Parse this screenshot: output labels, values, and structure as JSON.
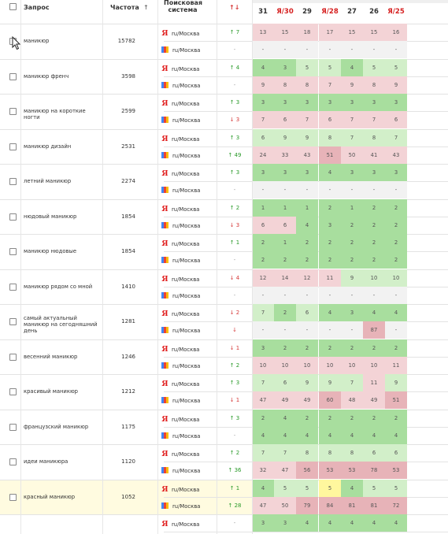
{
  "header": {
    "select_all": "",
    "query": "Запрос",
    "frequency": "Частота",
    "frequency_sort": "↑",
    "engine": "Поисковая система",
    "change": "↑↓"
  },
  "date_columns": [
    {
      "label": "31",
      "yandex": false
    },
    {
      "label": "Я/30",
      "yandex": true
    },
    {
      "label": "29",
      "yandex": false
    },
    {
      "label": "Я/28",
      "yandex": true
    },
    {
      "label": "27",
      "yandex": false
    },
    {
      "label": "26",
      "yandex": false
    },
    {
      "label": "Я/25",
      "yandex": true
    }
  ],
  "engines": {
    "yandex_icon": "yandex-logo-icon",
    "google_icon": "google-logo-icon",
    "region": "ru/Москва",
    "yandex_letter": "Я"
  },
  "colors": {
    "green_strong": "#a8de9e",
    "green_light": "#d2efc9",
    "red_light": "#f3d3d6",
    "red_mid": "#e7b3b8",
    "grey": "#f2f2f2",
    "highlight_row": "#fffbe0",
    "yellow_cell": "#fff79e"
  },
  "rows": [
    {
      "query": "маникюр",
      "freq": "15782",
      "y": {
        "d": "↑ 7",
        "t": "up",
        "v": [
          "13",
          "15",
          "18",
          "17",
          "15",
          "15",
          "16"
        ]
      },
      "g": {
        "d": "-",
        "t": "eq",
        "v": [
          "-",
          "-",
          "-",
          "-",
          "-",
          "-",
          "-"
        ]
      }
    },
    {
      "query": "маникюр френч",
      "freq": "3598",
      "y": {
        "d": "↑ 4",
        "t": "up",
        "v": [
          "4",
          "3",
          "5",
          "5",
          "4",
          "5",
          "5"
        ]
      },
      "g": {
        "d": "-",
        "t": "eq",
        "v": [
          "9",
          "8",
          "8",
          "7",
          "9",
          "8",
          "9"
        ]
      }
    },
    {
      "query": "маникюр на короткие ногти",
      "freq": "2599",
      "y": {
        "d": "↑ 3",
        "t": "up",
        "v": [
          "3",
          "3",
          "3",
          "3",
          "3",
          "3",
          "3"
        ]
      },
      "g": {
        "d": "↓ 3",
        "t": "down",
        "v": [
          "7",
          "6",
          "7",
          "6",
          "7",
          "7",
          "6"
        ]
      }
    },
    {
      "query": "маникюр дизайн",
      "freq": "2531",
      "y": {
        "d": "↑ 3",
        "t": "up",
        "v": [
          "6",
          "9",
          "9",
          "8",
          "7",
          "8",
          "7"
        ]
      },
      "g": {
        "d": "↑ 49",
        "t": "up",
        "v": [
          "24",
          "33",
          "43",
          "51",
          "50",
          "41",
          "43"
        ]
      }
    },
    {
      "query": "летний маникюр",
      "freq": "2274",
      "y": {
        "d": "↑ 3",
        "t": "up",
        "v": [
          "3",
          "3",
          "3",
          "4",
          "3",
          "3",
          "3"
        ]
      },
      "g": {
        "d": "-",
        "t": "eq",
        "v": [
          "-",
          "-",
          "-",
          "-",
          "-",
          "-",
          "-"
        ]
      }
    },
    {
      "query": "нюдовый маникюр",
      "freq": "1854",
      "y": {
        "d": "↑ 2",
        "t": "up",
        "v": [
          "1",
          "1",
          "1",
          "2",
          "1",
          "2",
          "2"
        ]
      },
      "g": {
        "d": "↓ 3",
        "t": "down",
        "v": [
          "6",
          "6",
          "4",
          "3",
          "2",
          "2",
          "2"
        ]
      }
    },
    {
      "query": "маникюр нюдовые",
      "freq": "1854",
      "y": {
        "d": "↑ 1",
        "t": "up",
        "v": [
          "2",
          "1",
          "2",
          "2",
          "2",
          "2",
          "2"
        ]
      },
      "g": {
        "d": "-",
        "t": "eq",
        "v": [
          "2",
          "2",
          "2",
          "2",
          "2",
          "2",
          "2"
        ]
      }
    },
    {
      "query": "маникюр рядом со мной",
      "freq": "1410",
      "y": {
        "d": "↓ 4",
        "t": "down",
        "v": [
          "12",
          "14",
          "12",
          "11",
          "9",
          "10",
          "10"
        ]
      },
      "g": {
        "d": "-",
        "t": "eq",
        "v": [
          "-",
          "-",
          "-",
          "-",
          "-",
          "-",
          "-"
        ]
      }
    },
    {
      "query": "самый актуальный маникюр на сегодняшний день",
      "freq": "1281",
      "y": {
        "d": "↓ 2",
        "t": "down",
        "v": [
          "7",
          "2",
          "6",
          "4",
          "3",
          "4",
          "4"
        ]
      },
      "g": {
        "d": "↓",
        "t": "down",
        "v": [
          "-",
          "-",
          "-",
          "-",
          "-",
          "87",
          "-"
        ]
      }
    },
    {
      "query": "весенний маникюр",
      "freq": "1246",
      "y": {
        "d": "↓ 1",
        "t": "down",
        "v": [
          "3",
          "2",
          "2",
          "2",
          "2",
          "2",
          "2"
        ]
      },
      "g": {
        "d": "↑ 2",
        "t": "up",
        "v": [
          "10",
          "10",
          "10",
          "10",
          "10",
          "10",
          "11"
        ]
      }
    },
    {
      "query": "красивый маникюр",
      "freq": "1212",
      "y": {
        "d": "↑ 3",
        "t": "up",
        "v": [
          "7",
          "6",
          "9",
          "9",
          "7",
          "11",
          "9"
        ]
      },
      "g": {
        "d": "↓ 1",
        "t": "down",
        "v": [
          "47",
          "49",
          "49",
          "60",
          "48",
          "49",
          "51"
        ]
      }
    },
    {
      "query": "французский маникюр",
      "freq": "1175",
      "y": {
        "d": "↑ 3",
        "t": "up",
        "v": [
          "2",
          "4",
          "2",
          "2",
          "2",
          "2",
          "2"
        ]
      },
      "g": {
        "d": "-",
        "t": "eq",
        "v": [
          "4",
          "4",
          "4",
          "4",
          "4",
          "4",
          "4"
        ]
      }
    },
    {
      "query": "идеи маникюра",
      "freq": "1120",
      "y": {
        "d": "↑ 2",
        "t": "up",
        "v": [
          "7",
          "7",
          "8",
          "8",
          "8",
          "6",
          "6"
        ]
      },
      "g": {
        "d": "↑ 36",
        "t": "up",
        "v": [
          "32",
          "47",
          "56",
          "53",
          "53",
          "78",
          "53"
        ]
      }
    },
    {
      "query": "красный маникюр",
      "freq": "1052",
      "highlight": true,
      "y": {
        "d": "↑ 1",
        "t": "up",
        "v": [
          "4",
          "5",
          "5",
          "5",
          "4",
          "5",
          "5"
        ]
      },
      "g": {
        "d": "↑ 28",
        "t": "up",
        "v": [
          "47",
          "50",
          "79",
          "84",
          "81",
          "81",
          "72"
        ]
      }
    },
    {
      "query": "",
      "freq": "",
      "y": {
        "d": "-",
        "t": "eq",
        "v": [
          "3",
          "3",
          "4",
          "4",
          "4",
          "4",
          "4"
        ]
      }
    }
  ]
}
